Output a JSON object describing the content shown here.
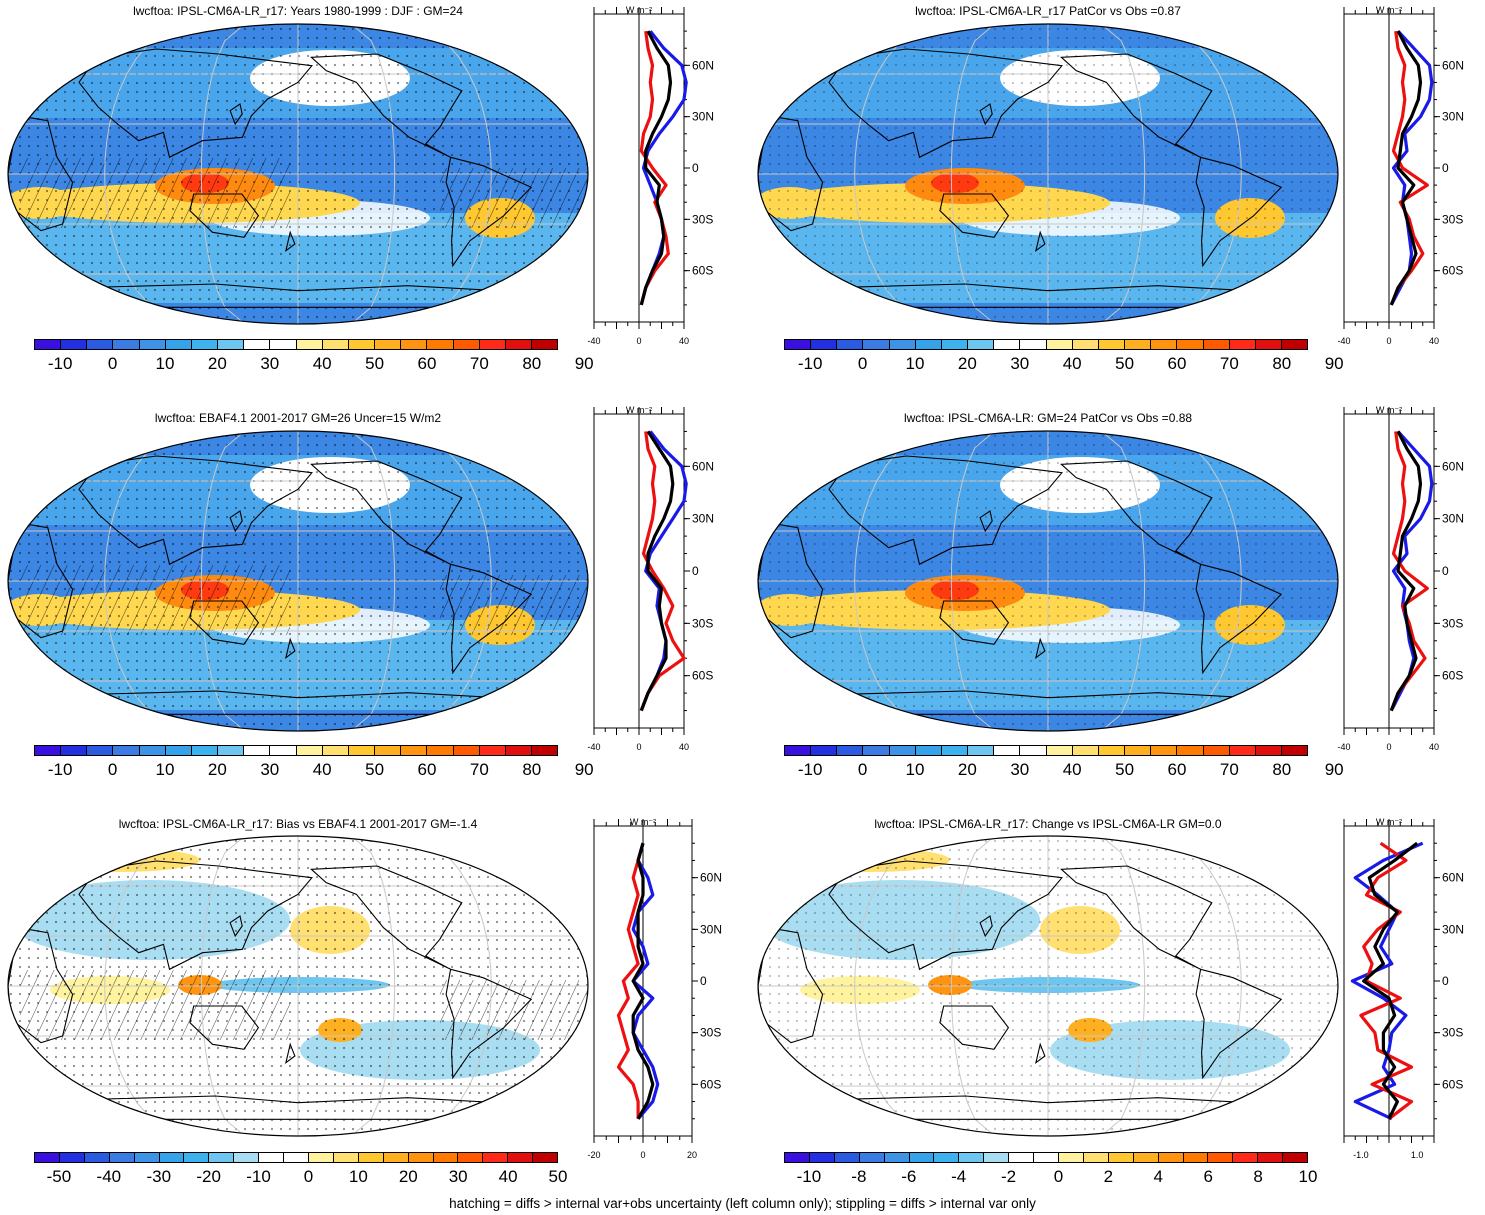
{
  "units": "W m⁻²",
  "lat_labels": [
    "60N",
    "30N",
    "0",
    "30S",
    "60S"
  ],
  "colors": {
    "main_levels": [
      "#3a10e0",
      "#2230e0",
      "#2a5be0",
      "#3c7ce2",
      "#3d93e6",
      "#35a3ea",
      "#3cb2ee",
      "#6cc6f0",
      "#ffffff",
      "#ffffff",
      "#fff3a0",
      "#ffe070",
      "#ffc830",
      "#ffb020",
      "#ff9410",
      "#ff7a00",
      "#ff5a00",
      "#ff2a1a",
      "#e01010",
      "#c00000"
    ],
    "diff_levels": [
      "#3a10e0",
      "#2230e0",
      "#2a5be0",
      "#3c7ce2",
      "#3d93e6",
      "#35a3ea",
      "#3cb2ee",
      "#6cc6f0",
      "#a8ddf2",
      "#ffffff",
      "#ffffff",
      "#fff3a0",
      "#ffe070",
      "#ffc830",
      "#ffb020",
      "#ff9410",
      "#ff7a00",
      "#ff5a00",
      "#ff2a1a",
      "#e01010",
      "#c00000"
    ],
    "profile_blue": "#1a1ae8",
    "profile_red": "#ee1010",
    "profile_black": "#000000",
    "land_outline": "#000000",
    "grid": "#c8c8c8"
  },
  "panels": [
    {
      "title": "lwcftoa: IPSL-CM6A-LR_r17: Years 1980-1999 : DJF : GM=24",
      "colorbar_labels": [
        "-10",
        "0",
        "10",
        "20",
        "30",
        "40",
        "50",
        "60",
        "70",
        "80",
        "90"
      ],
      "colorbar_kind": "main",
      "profile_xticks": [
        "-40",
        "0",
        "40"
      ],
      "chart_data": {
        "type": "line",
        "x_range": [
          -40,
          40
        ],
        "y_axis": "latitude",
        "lat": [
          -80,
          -70,
          -60,
          -50,
          -40,
          -30,
          -20,
          -10,
          0,
          10,
          20,
          30,
          40,
          50,
          60,
          70,
          80
        ],
        "series": [
          {
            "color": "blue",
            "values": [
              2,
              6,
              12,
              18,
              22,
              20,
              16,
              10,
              4,
              8,
              18,
              30,
              40,
              42,
              38,
              22,
              10
            ]
          },
          {
            "color": "red",
            "values": [
              2,
              6,
              14,
              26,
              24,
              20,
              14,
              24,
              12,
              2,
              4,
              10,
              12,
              10,
              12,
              8,
              6
            ]
          },
          {
            "color": "black",
            "values": [
              2,
              6,
              12,
              20,
              22,
              20,
              16,
              18,
              6,
              6,
              12,
              20,
              26,
              28,
              26,
              16,
              8
            ]
          }
        ]
      }
    },
    {
      "title": "lwcftoa: IPSL-CM6A-LR_r17 PatCor vs Obs =0.87",
      "colorbar_labels": [
        "-10",
        "0",
        "10",
        "20",
        "30",
        "40",
        "50",
        "60",
        "70",
        "80",
        "90"
      ],
      "colorbar_kind": "main",
      "profile_xticks": [
        "-40",
        "0",
        "40"
      ],
      "chart_data": {
        "type": "line",
        "x_range": [
          -40,
          40
        ],
        "y_axis": "latitude",
        "lat": [
          -80,
          -70,
          -60,
          -50,
          -40,
          -30,
          -20,
          -10,
          0,
          10,
          20,
          30,
          40,
          50,
          60,
          70,
          80
        ],
        "series": [
          {
            "color": "blue",
            "values": [
              2,
              10,
              18,
              20,
              18,
              16,
              12,
              14,
              4,
              16,
              14,
              28,
              36,
              38,
              36,
              22,
              8
            ]
          },
          {
            "color": "red",
            "values": [
              2,
              8,
              20,
              30,
              22,
              18,
              10,
              34,
              12,
              4,
              8,
              12,
              14,
              12,
              14,
              8,
              6
            ]
          },
          {
            "color": "black",
            "values": [
              2,
              8,
              18,
              24,
              20,
              16,
              12,
              22,
              8,
              10,
              12,
              20,
              26,
              28,
              26,
              16,
              8
            ]
          }
        ]
      }
    },
    {
      "title": "lwcftoa: EBAF4.1 2001-2017 GM=26 Uncer=15 W/m2",
      "colorbar_labels": [
        "-10",
        "0",
        "10",
        "20",
        "30",
        "40",
        "50",
        "60",
        "70",
        "80",
        "90"
      ],
      "colorbar_kind": "main",
      "profile_xticks": [
        "-40",
        "0",
        "40"
      ],
      "chart_data": {
        "type": "line",
        "x_range": [
          -40,
          40
        ],
        "y_axis": "latitude",
        "lat": [
          -80,
          -70,
          -60,
          -50,
          -40,
          -30,
          -20,
          -10,
          0,
          10,
          20,
          30,
          40,
          50,
          60,
          70,
          80
        ],
        "series": [
          {
            "color": "blue",
            "values": [
              2,
              8,
              16,
              22,
              24,
              20,
              16,
              18,
              6,
              10,
              20,
              30,
              40,
              42,
              38,
              22,
              10
            ]
          },
          {
            "color": "red",
            "values": [
              2,
              8,
              18,
              40,
              30,
              24,
              30,
              22,
              12,
              4,
              8,
              12,
              14,
              12,
              14,
              8,
              6
            ]
          },
          {
            "color": "black",
            "values": [
              2,
              8,
              16,
              24,
              24,
              20,
              18,
              20,
              8,
              8,
              14,
              22,
              28,
              30,
              28,
              18,
              8
            ]
          }
        ]
      }
    },
    {
      "title": "lwcftoa: IPSL-CM6A-LR: GM=24 PatCor vs Obs =0.88",
      "colorbar_labels": [
        "-10",
        "0",
        "10",
        "20",
        "30",
        "40",
        "50",
        "60",
        "70",
        "80",
        "90"
      ],
      "colorbar_kind": "main",
      "profile_xticks": [
        "-40",
        "0",
        "40"
      ],
      "chart_data": {
        "type": "line",
        "x_range": [
          -40,
          40
        ],
        "y_axis": "latitude",
        "lat": [
          -80,
          -70,
          -60,
          -50,
          -40,
          -30,
          -20,
          -10,
          0,
          10,
          20,
          30,
          40,
          50,
          60,
          70,
          80
        ],
        "series": [
          {
            "color": "blue",
            "values": [
              2,
              10,
              18,
              22,
              18,
              16,
              12,
              14,
              4,
              16,
              14,
              28,
              36,
              38,
              36,
              22,
              8
            ]
          },
          {
            "color": "red",
            "values": [
              2,
              8,
              20,
              32,
              22,
              18,
              12,
              34,
              14,
              4,
              8,
              12,
              14,
              12,
              14,
              8,
              6
            ]
          },
          {
            "color": "black",
            "values": [
              2,
              8,
              18,
              24,
              20,
              16,
              14,
              22,
              8,
              10,
              12,
              20,
              26,
              28,
              26,
              16,
              8
            ]
          }
        ]
      }
    },
    {
      "title": "lwcftoa: IPSL-CM6A-LR_r17: Bias vs EBAF4.1 2001-2017 GM=-1.4",
      "colorbar_labels": [
        "-50",
        "-40",
        "-30",
        "-20",
        "-10",
        "0",
        "10",
        "20",
        "30",
        "40",
        "50"
      ],
      "colorbar_kind": "diff",
      "profile_xticks": [
        "-20",
        "0",
        "20"
      ],
      "chart_data": {
        "type": "line",
        "x_range": [
          -20,
          20
        ],
        "y_axis": "latitude",
        "lat": [
          -80,
          -70,
          -60,
          -50,
          -40,
          -30,
          -20,
          -10,
          0,
          10,
          20,
          30,
          40,
          50,
          60,
          70,
          80
        ],
        "series": [
          {
            "color": "blue",
            "values": [
              -2,
              4,
              6,
              4,
              0,
              -4,
              -2,
              4,
              -4,
              2,
              0,
              -4,
              -2,
              4,
              2,
              -2,
              0
            ]
          },
          {
            "color": "red",
            "values": [
              -2,
              -2,
              -4,
              -10,
              -6,
              -8,
              -10,
              -6,
              -8,
              -2,
              -4,
              -6,
              -4,
              -2,
              -4,
              -2,
              0
            ]
          },
          {
            "color": "black",
            "values": [
              -2,
              2,
              4,
              2,
              -2,
              -4,
              -4,
              0,
              -4,
              0,
              -2,
              -2,
              -2,
              0,
              0,
              -2,
              0
            ]
          }
        ]
      }
    },
    {
      "title": "lwcftoa: IPSL-CM6A-LR_r17: Change vs IPSL-CM6A-LR GM=0.0",
      "colorbar_labels": [
        "-10",
        "-8",
        "-6",
        "-4",
        "-2",
        "0",
        "2",
        "4",
        "6",
        "8",
        "10"
      ],
      "colorbar_kind": "diff",
      "profile_xticks": [
        "-1.0",
        "1.0"
      ],
      "chart_data": {
        "type": "line",
        "x_range": [
          -1.6,
          1.6
        ],
        "y_axis": "latitude",
        "lat": [
          -80,
          -70,
          -60,
          -50,
          -40,
          -30,
          -20,
          -10,
          0,
          10,
          20,
          30,
          40,
          50,
          60,
          70,
          80
        ],
        "series": [
          {
            "color": "blue",
            "values": [
              0.1,
              -1.2,
              0.2,
              -0.2,
              0.0,
              0.1,
              0.6,
              -0.2,
              -1.3,
              0.1,
              -0.3,
              0.0,
              0.3,
              -0.4,
              -1.2,
              -0.2,
              1.2
            ]
          },
          {
            "color": "red",
            "values": [
              0.0,
              0.8,
              -0.6,
              0.8,
              -0.4,
              -0.5,
              -1.0,
              0.4,
              -0.8,
              -0.6,
              -0.9,
              -0.4,
              0.4,
              -0.8,
              -0.4,
              0.6,
              -0.3
            ]
          },
          {
            "color": "black",
            "values": [
              0.0,
              0.3,
              -0.2,
              0.2,
              -0.2,
              -0.2,
              0.2,
              0.0,
              -0.9,
              -0.2,
              -0.5,
              -0.2,
              0.3,
              -0.5,
              -0.7,
              0.2,
              1.0
            ]
          }
        ]
      }
    }
  ],
  "footer": "hatching = diffs > internal var+obs uncertainty (left column only); stippling = diffs > internal var only"
}
